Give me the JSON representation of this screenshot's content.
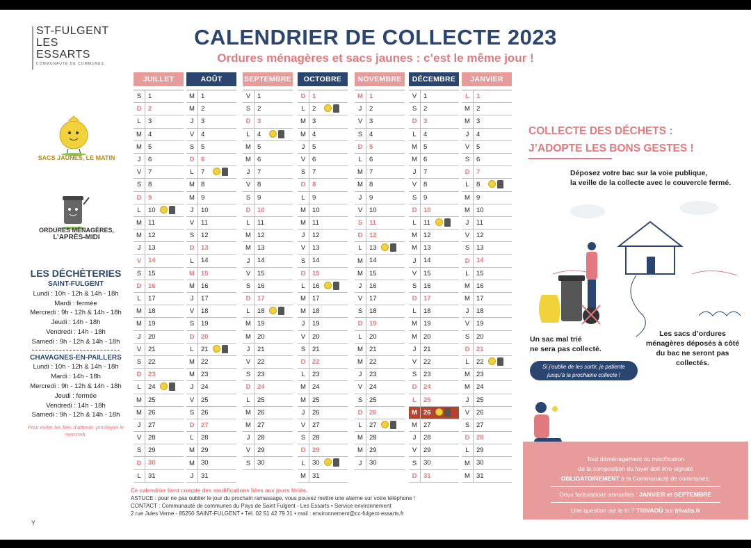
{
  "logo": {
    "line1": "ST-FULGENT",
    "line2": "LES ESSARTS",
    "line3": "COMMUNAUTÉ DE COMMUNES"
  },
  "header": {
    "title": "CALENDRIER DE COLLECTE 2023",
    "subtitle": "Ordures ménagères et sacs jaunes : c’est le même jour !"
  },
  "legend": {
    "yellow": "SACS JAUNES, LE MATIN",
    "grey_line1": "ORDURES MÉNAGÈRES,",
    "grey_line2": "L’APRÈS-MIDI"
  },
  "decheteries": {
    "title": "LES DÉCHÈTERIES",
    "site1": {
      "name": "SAINT-FULGENT",
      "lines": [
        "Lundi : 10h - 12h & 14h - 18h",
        "Mardi : fermée",
        "Mercredi : 9h - 12h & 14h - 18h",
        "Jeudi : 14h - 18h",
        "Vendredi : 14h - 18h",
        "Samedi : 9h - 12h & 14h - 18h"
      ]
    },
    "site2": {
      "name": "CHAVAGNES-EN-PAILLERS",
      "lines": [
        "Lundi : 10h - 12h & 14h - 18h",
        "Mardi : 14h - 18h",
        "Mercredi : 9h - 12h & 14h - 18h",
        "Jeudi : fermée",
        "Vendredi : 14h - 18h",
        "Samedi : 9h - 12h & 14h - 18h"
      ]
    },
    "note": "Pour éviter les files d’attente, privilégier le mercredi."
  },
  "months": [
    {
      "name": "JUILLET",
      "color": "pink",
      "first": 6,
      "days": 31,
      "collect": [
        10,
        24
      ]
    },
    {
      "name": "AOÛT",
      "color": "navy",
      "first": 2,
      "days": 31,
      "collect": [
        7,
        21
      ]
    },
    {
      "name": "SEPTEMBRE",
      "color": "pink",
      "first": 5,
      "days": 30,
      "collect": [
        4,
        18
      ]
    },
    {
      "name": "OCTOBRE",
      "color": "navy",
      "first": 0,
      "days": 31,
      "collect": [
        2,
        16,
        30
      ]
    },
    {
      "name": "NOVEMBRE",
      "color": "pink",
      "first": 3,
      "days": 30,
      "collect": [
        13,
        27
      ]
    },
    {
      "name": "DÉCEMBRE",
      "color": "navy",
      "first": 5,
      "days": 31,
      "collect": [
        11,
        26
      ]
    },
    {
      "name": "JANVIER 2024",
      "color": "pink",
      "first": 1,
      "days": 31,
      "collect": [
        8,
        22
      ]
    }
  ],
  "holidays": {
    "JUILLET": [
      14
    ],
    "AOÛT": [
      15
    ],
    "NOVEMBRE": [
      1,
      11
    ],
    "DÉCEMBRE": [
      25
    ],
    "JANVIER 2024": [
      1
    ]
  },
  "highlight": {
    "month": "DÉCEMBRE",
    "day": 26
  },
  "day_letters": [
    "D",
    "L",
    "M",
    "M",
    "J",
    "V",
    "S"
  ],
  "footer": {
    "line1": "Ce calendrier tient compte des modifications liées aux jours fériés.",
    "line2": "ASTUCE : pour ne pas oublier le jour du prochain ramassage, vous pouvez mettre une alarme sur votre téléphone !",
    "line3": "CONTACT : Communauté de communes du Pays de Saint Fulgent - Les Essarts • Service environnement",
    "line4": "2 rue Jules Verne - 85250 SAINT-FULGENT • Tél. 02 51 42 79 31 • mail : environnement@cc-fulgent-essarts.fr"
  },
  "right": {
    "title1": "COLLECTE DES DÉCHETS :",
    "title2": "J’ADOPTE LES BONS GESTES !",
    "tip1a": "Déposez votre bac sur la voie publique,",
    "tip1b": "la veille de la collecte avec le couvercle fermé.",
    "tip2a": "Un sac mal trié",
    "tip2b": "ne sera pas collecté.",
    "tip3": "Les sacs d’ordures ménagères déposés à côté du bac ne seront pas collectés.",
    "speech1": "Si j’oublie de les sortir, je patiente",
    "speech2": "jusqu’à la prochaine collecte !",
    "box1": "Tout déménagement ou modification",
    "box2": "de la composition du foyer doit être signalé",
    "box3a": "OBLIGATOIREMENT",
    "box3b": " à la Communauté de communes.",
    "box4a": "Deux facturations annuelles : ",
    "box4b": "JANVIER et SEPTEMBRE",
    "box5a": "Une question sur le tri ? ",
    "box5b": "TRIVAOÙ",
    "box5c": " sur ",
    "box5d": "trivalis.fr"
  },
  "corner": "Y",
  "colors": {
    "navy": "#2b4571",
    "pink": "#e89b9b",
    "red": "#e07a7e",
    "highlight": "#b3452e"
  }
}
